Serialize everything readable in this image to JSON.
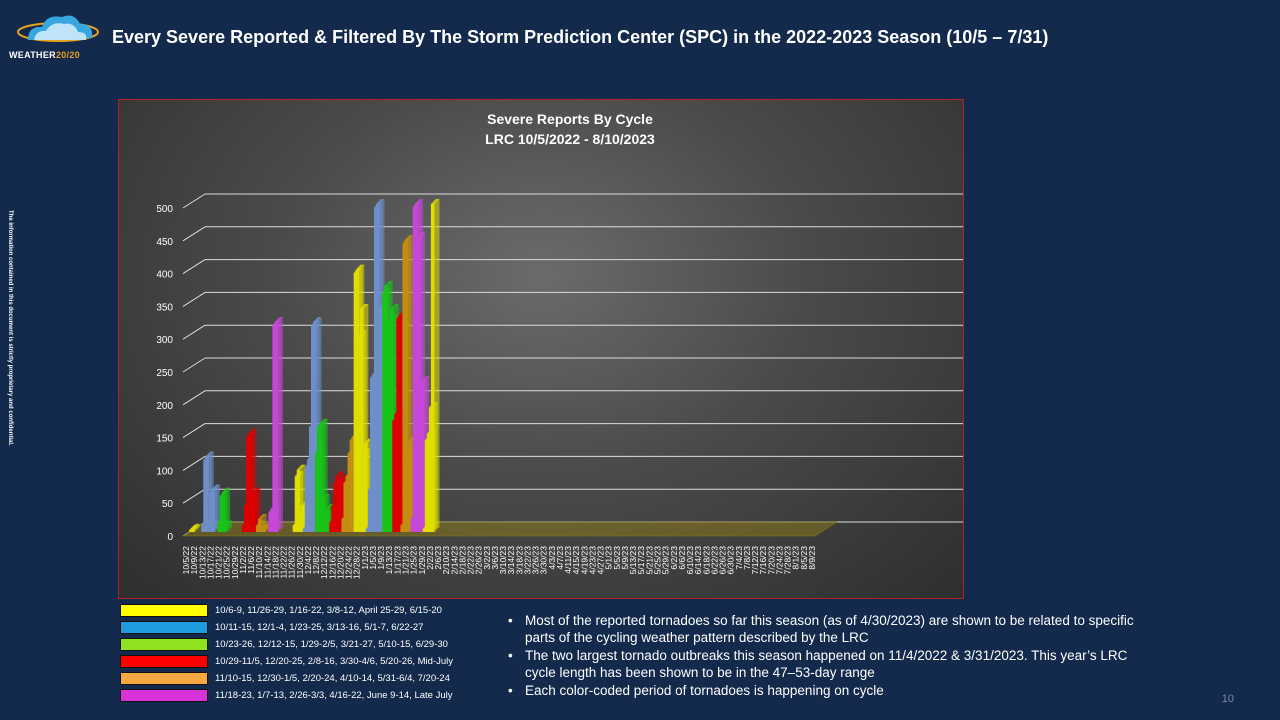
{
  "header": {
    "title": "Every Severe Reported & Filtered By The Storm Prediction Center (SPC) in the 2022-2023 Season (10/5 – 7/31)",
    "logo_main": "WEATHER",
    "logo_accent": "20/20"
  },
  "side_note": "The information contained in this document is strictly proprietary and confidential.",
  "page_number": "10",
  "colors": {
    "yellow": "#dede00",
    "blue": "#6e8fc9",
    "green": "#18c418",
    "red": "#dd0000",
    "orange": "#c28e12",
    "magenta": "#c548d6",
    "axis_text": "#ffffff",
    "gridline": "#dcdcdc"
  },
  "legend": [
    {
      "color": "#ffff00",
      "text": "10/6-9, 11/26-29, 1/16-22, 3/8-12, April 25-29,  6/15-20"
    },
    {
      "color": "#1f9be0",
      "text": "10/11-15, 12/1-4, 1/23-25, 3/13-16, 5/1-7, 6/22-27"
    },
    {
      "color": "#8ee21f",
      "text": "10/23-26, 12/12-15, 1/29-2/5, 3/21-27, 5/10-15, 6/29-30"
    },
    {
      "color": "#ff0000",
      "text": "10/29-11/5, 12/20-25, 2/8-16, 3/30-4/6, 5/20-26, Mid-July"
    },
    {
      "color": "#f5a742",
      "text": "11/10-15, 12/30-1/5, 2/20-24, 4/10-14, 5/31-6/4, 7/20-24"
    },
    {
      "color": "#d833d8",
      "text": "11/18-23, 1/7-13, 2/26-3/3, 4/16-22, June 9-14, Late July"
    }
  ],
  "bullets": [
    "Most of the reported tornadoes so far this season (as of 4/30/2023) are shown to be related to specific parts of the cycling weather pattern described by the LRC",
    "The two largest tornado outbreaks this season happened on 11/4/2022 & 3/31/2023. This year’s LRC cycle length has been shown to be in the 47–53-day range",
    "Each color-coded period of tornadoes is happening on cycle"
  ],
  "chart_data": {
    "type": "bar",
    "title": "Severe Reports By Cycle",
    "subtitle": "LRC 10/5/2022 - 8/10/2023",
    "xlabel": "",
    "ylabel": "",
    "ylim": [
      0,
      500
    ],
    "y_ticks": [
      "0",
      "50",
      "100",
      "150",
      "200",
      "250",
      "300",
      "350",
      "400",
      "450",
      "500"
    ],
    "grid": true,
    "start_date": "10/5/2022",
    "categories": [
      "10/5/22",
      "10/9/22",
      "10/13/22",
      "10/17/22",
      "10/21/22",
      "10/25/22",
      "10/29/22",
      "11/2/22",
      "11/6/22",
      "11/10/22",
      "11/14/22",
      "11/18/22",
      "11/22/22",
      "11/26/22",
      "11/30/22",
      "12/4/22",
      "12/8/22",
      "12/12/22",
      "12/16/22",
      "12/20/22",
      "12/24/22",
      "12/28/22",
      "1/1/23",
      "1/5/23",
      "1/9/23",
      "1/13/23",
      "1/17/23",
      "1/21/23",
      "1/25/23",
      "1/29/23",
      "2/2/23",
      "2/6/23",
      "2/10/23",
      "2/14/23",
      "2/18/23",
      "2/22/23",
      "2/26/23",
      "3/2/23",
      "3/6/23",
      "3/10/23",
      "3/14/23",
      "3/18/23",
      "3/22/23",
      "3/26/23",
      "3/30/23",
      "4/3/23",
      "4/7/23",
      "4/11/23",
      "4/15/23",
      "4/19/23",
      "4/23/23",
      "4/27/23",
      "5/1/23",
      "5/5/23",
      "5/9/23",
      "5/13/23",
      "5/17/23",
      "5/21/23",
      "5/25/23",
      "5/29/23",
      "6/2/23",
      "6/6/23",
      "6/10/23",
      "6/14/23",
      "6/18/23",
      "6/22/23",
      "6/26/23",
      "6/30/23",
      "7/4/23",
      "7/8/23",
      "7/12/23",
      "7/16/23",
      "7/20/23",
      "7/24/23",
      "7/28/23",
      "8/1/23",
      "8/5/23",
      "8/9/23"
    ],
    "series": [
      {
        "color": "yellow",
        "points": [
          [
            1,
            3
          ],
          [
            2,
            5
          ],
          [
            52,
            10
          ],
          [
            53,
            85
          ],
          [
            54,
            95
          ],
          [
            55,
            30
          ],
          [
            56,
            40
          ],
          [
            81,
            125
          ],
          [
            82,
            395
          ],
          [
            83,
            400
          ],
          [
            84,
            300
          ],
          [
            85,
            340
          ],
          [
            86,
            120
          ],
          [
            87,
            135
          ],
          [
            116,
            5
          ],
          [
            117,
            140
          ],
          [
            118,
            150
          ],
          [
            119,
            190
          ],
          [
            120,
            500
          ]
        ]
      },
      {
        "color": "blue",
        "points": [
          [
            7,
            10
          ],
          [
            8,
            110
          ],
          [
            9,
            115
          ],
          [
            10,
            10
          ],
          [
            11,
            60
          ],
          [
            12,
            65
          ],
          [
            57,
            5
          ],
          [
            58,
            100
          ],
          [
            59,
            110
          ],
          [
            60,
            160
          ],
          [
            61,
            315
          ],
          [
            62,
            320
          ],
          [
            88,
            5
          ],
          [
            89,
            65
          ],
          [
            90,
            235
          ],
          [
            91,
            240
          ],
          [
            92,
            495
          ],
          [
            93,
            500
          ],
          [
            94,
            340
          ],
          [
            95,
            345
          ]
        ]
      },
      {
        "color": "green",
        "points": [
          [
            15,
            15
          ],
          [
            16,
            55
          ],
          [
            17,
            60
          ],
          [
            18,
            10
          ],
          [
            63,
            120
          ],
          [
            64,
            160
          ],
          [
            65,
            165
          ],
          [
            66,
            50
          ],
          [
            67,
            25
          ],
          [
            68,
            35
          ],
          [
            96,
            365
          ],
          [
            97,
            375
          ],
          [
            98,
            300
          ],
          [
            99,
            325
          ],
          [
            100,
            340
          ]
        ]
      },
      {
        "color": "red",
        "points": [
          [
            27,
            10
          ],
          [
            28,
            40
          ],
          [
            29,
            145
          ],
          [
            30,
            150
          ],
          [
            31,
            55
          ],
          [
            32,
            60
          ],
          [
            70,
            15
          ],
          [
            71,
            40
          ],
          [
            72,
            75
          ],
          [
            73,
            85
          ],
          [
            74,
            70
          ],
          [
            75,
            80
          ],
          [
            101,
            170
          ],
          [
            102,
            180
          ],
          [
            103,
            325
          ],
          [
            104,
            330
          ]
        ]
      },
      {
        "color": "orange",
        "points": [
          [
            34,
            10
          ],
          [
            35,
            20
          ],
          [
            36,
            5
          ],
          [
            37,
            5
          ],
          [
            76,
            20
          ],
          [
            77,
            75
          ],
          [
            78,
            85
          ],
          [
            79,
            120
          ],
          [
            80,
            140
          ],
          [
            81,
            145
          ],
          [
            105,
            10
          ],
          [
            106,
            440
          ],
          [
            107,
            445
          ],
          [
            108,
            130
          ],
          [
            109,
            140
          ]
        ]
      },
      {
        "color": "magenta",
        "points": [
          [
            40,
            30
          ],
          [
            41,
            35
          ],
          [
            42,
            315
          ],
          [
            43,
            320
          ],
          [
            110,
            20
          ],
          [
            111,
            495
          ],
          [
            112,
            500
          ],
          [
            113,
            450
          ],
          [
            114,
            225
          ],
          [
            115,
            230
          ]
        ]
      }
    ]
  }
}
